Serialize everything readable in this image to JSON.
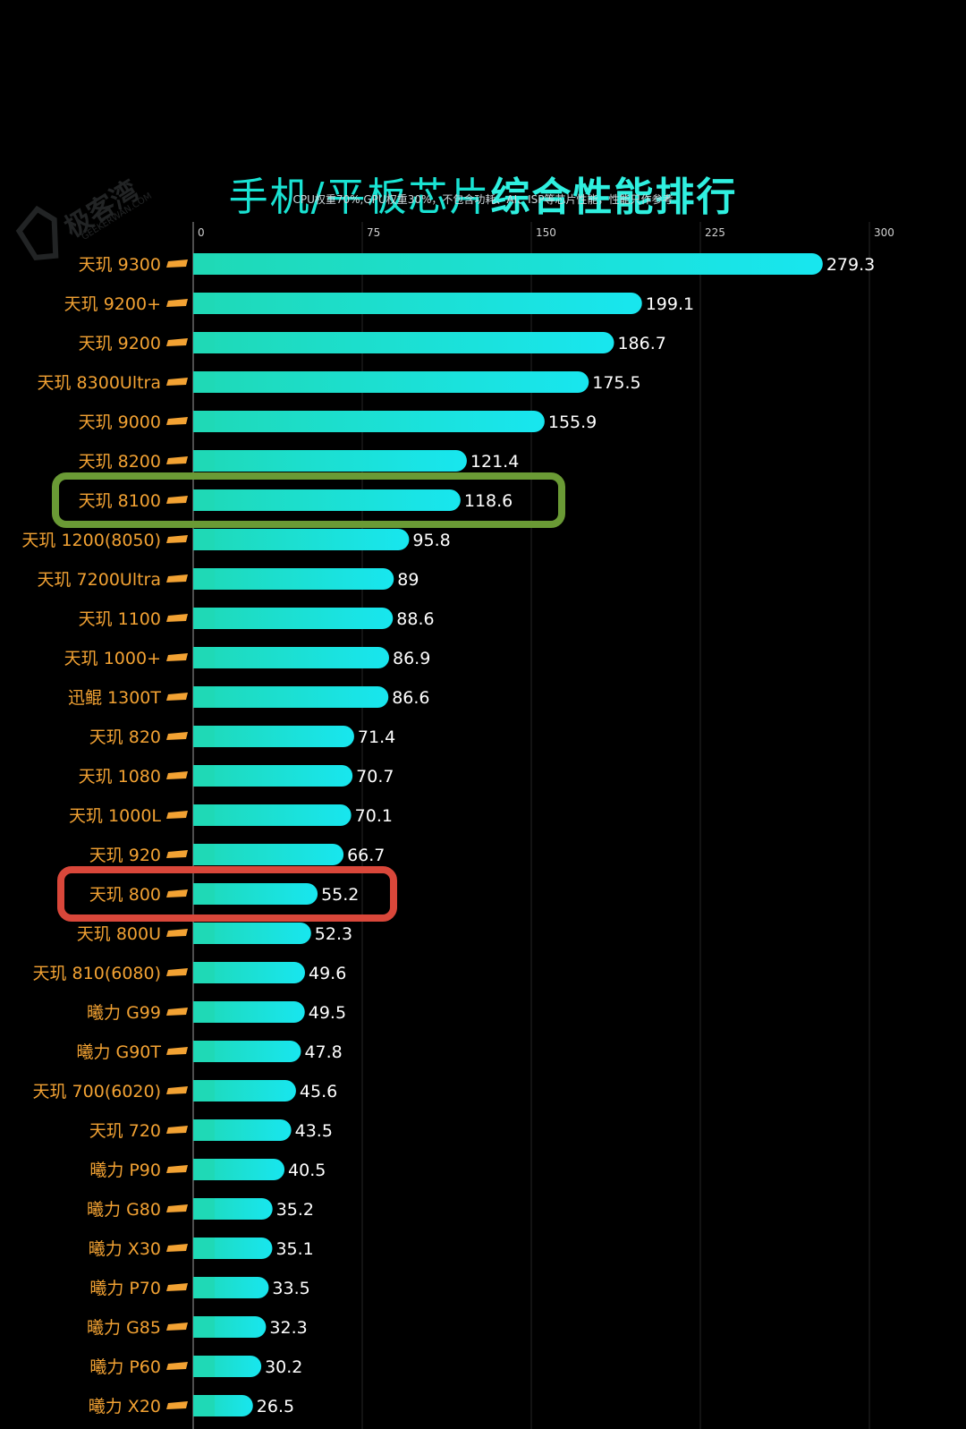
{
  "chart_data": {
    "type": "bar",
    "orientation": "horizontal",
    "title_part1": "手机/平板芯片",
    "title_part2": "综合性能排行",
    "subtitle": "CPU权重70%,GPU权重30%，不包含功耗、AI、ISP等芯片性能，性能只作参考",
    "xlim": [
      0,
      300
    ],
    "xticks": [
      0,
      75,
      150,
      225,
      300
    ],
    "grid": true,
    "categories": [
      "天玑 9300",
      "天玑 9200+",
      "天玑 9200",
      "天玑 8300Ultra",
      "天玑 9000",
      "天玑 8200",
      "天玑 8100",
      "天玑 1200(8050)",
      "天玑 7200Ultra",
      "天玑 1100",
      "天玑 1000+",
      "迅鲲 1300T",
      "天玑 820",
      "天玑 1080",
      "天玑 1000L",
      "天玑 920",
      "天玑 800",
      "天玑 800U",
      "天玑 810(6080)",
      "曦力 G99",
      "曦力 G90T",
      "天玑 700(6020)",
      "天玑 720",
      "曦力 P90",
      "曦力 G80",
      "曦力 X30",
      "曦力 P70",
      "曦力 G85",
      "曦力 P60",
      "曦力 X20"
    ],
    "values": [
      279.3,
      199.1,
      186.7,
      175.5,
      155.9,
      121.4,
      118.6,
      95.8,
      89,
      88.6,
      86.9,
      86.6,
      71.4,
      70.7,
      70.1,
      66.7,
      55.2,
      52.3,
      49.6,
      49.5,
      47.8,
      45.6,
      43.5,
      40.5,
      35.2,
      35.1,
      33.5,
      32.3,
      30.2,
      26.5
    ],
    "value_labels": [
      "279.3",
      "199.1",
      "186.7",
      "175.5",
      "155.9",
      "121.4",
      "118.6",
      "95.8",
      "89",
      "88.6",
      "86.9",
      "86.6",
      "71.4",
      "70.7",
      "70.1",
      "66.7",
      "55.2",
      "52.3",
      "49.6",
      "49.5",
      "47.8",
      "45.6",
      "43.5",
      "40.5",
      "35.2",
      "35.1",
      "33.5",
      "32.3",
      "30.2",
      "26.5"
    ],
    "highlights": [
      {
        "category": "天玑 8100",
        "color": "#6a9a35"
      },
      {
        "category": "天玑 800",
        "color": "#d9473a"
      }
    ],
    "colors": {
      "background": "#000000",
      "bar_start": "#1fd9b6",
      "bar_end": "#18e6ef",
      "category_label": "#f2a233",
      "value_label": "#ffffff",
      "title_part1": "#19e3d3",
      "title_part2": "#2ff0e0"
    }
  },
  "watermark": {
    "text": "极客湾",
    "subtext": "GEEKERWAN.COM"
  }
}
